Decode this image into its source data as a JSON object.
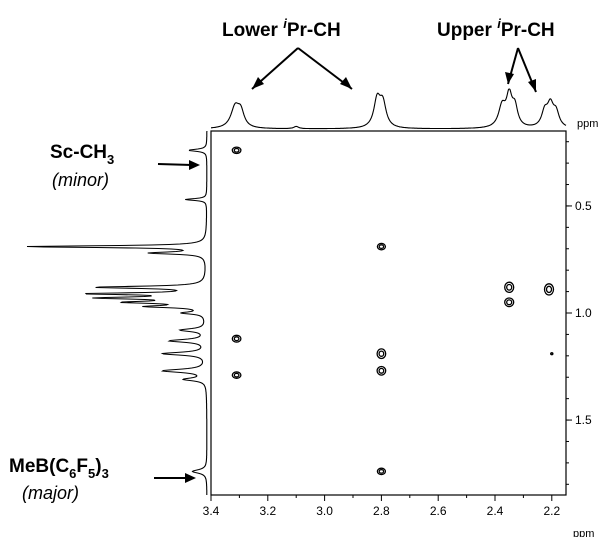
{
  "chart_data": {
    "type": "scatter",
    "subtype": "2D NMR contour spectrum (COSY)",
    "x_axis": {
      "unit": "ppm",
      "range": [
        3.4,
        2.15
      ],
      "ticks": [
        "3.4",
        "3.2",
        "3.0",
        "2.8",
        "2.6",
        "2.4",
        "2.2"
      ]
    },
    "y_axis": {
      "unit": "ppm",
      "range": [
        0.15,
        1.85
      ],
      "ticks": [
        "0.5",
        "1.0",
        "1.5"
      ]
    },
    "x_unit_label": "ppm",
    "y_unit_label": "ppm",
    "annotations": {
      "lower_ipr_ch": {
        "prefix": "Lower ",
        "sup": "i",
        "suffix": "Pr-CH"
      },
      "upper_ipr_ch": {
        "prefix": "Upper ",
        "sup": "i",
        "suffix": "Pr-CH"
      },
      "sc_ch3": {
        "main": "Sc-CH",
        "sub": "3",
        "note": "(minor)"
      },
      "meb": {
        "p1": "MeB(C",
        "s1": "6",
        "p2": "F",
        "s2": "5",
        "p3": ")",
        "s3": "3",
        "note": "(major)"
      }
    },
    "cross_peaks": [
      {
        "x": 3.31,
        "y": 0.24,
        "w": 0.03,
        "h": 0.03
      },
      {
        "x": 3.31,
        "y": 1.12,
        "w": 0.03,
        "h": 0.032
      },
      {
        "x": 3.31,
        "y": 1.29,
        "w": 0.03,
        "h": 0.03
      },
      {
        "x": 2.8,
        "y": 0.69,
        "w": 0.028,
        "h": 0.03
      },
      {
        "x": 2.8,
        "y": 1.19,
        "w": 0.03,
        "h": 0.045
      },
      {
        "x": 2.8,
        "y": 1.27,
        "w": 0.03,
        "h": 0.04
      },
      {
        "x": 2.8,
        "y": 1.74,
        "w": 0.028,
        "h": 0.03
      },
      {
        "x": 2.35,
        "y": 0.88,
        "w": 0.032,
        "h": 0.048
      },
      {
        "x": 2.35,
        "y": 0.95,
        "w": 0.032,
        "h": 0.04
      },
      {
        "x": 2.21,
        "y": 0.89,
        "w": 0.032,
        "h": 0.052
      },
      {
        "x": 2.2,
        "y": 1.19,
        "w": 0.006,
        "h": 0.008
      }
    ],
    "top_projection_peaks": [
      {
        "ppm": 3.315,
        "height": 0.55,
        "width": 0.018
      },
      {
        "ppm": 3.295,
        "height": 0.38,
        "width": 0.014
      },
      {
        "ppm": 2.815,
        "height": 0.72,
        "width": 0.014
      },
      {
        "ppm": 2.795,
        "height": 0.62,
        "width": 0.014
      },
      {
        "ppm": 3.1,
        "height": 0.06,
        "width": 0.01
      },
      {
        "ppm": 2.375,
        "height": 0.55,
        "width": 0.015
      },
      {
        "ppm": 2.35,
        "height": 0.78,
        "width": 0.012
      },
      {
        "ppm": 2.33,
        "height": 0.5,
        "width": 0.012
      },
      {
        "ppm": 2.225,
        "height": 0.4,
        "width": 0.013
      },
      {
        "ppm": 2.205,
        "height": 0.55,
        "width": 0.013
      },
      {
        "ppm": 2.185,
        "height": 0.38,
        "width": 0.013
      }
    ],
    "left_projection_peaks": [
      {
        "ppm": 0.24,
        "height": 0.1,
        "width": 0.006
      },
      {
        "ppm": 0.47,
        "height": 0.12,
        "width": 0.005
      },
      {
        "ppm": 0.69,
        "height": 1.0,
        "width": 0.005
      },
      {
        "ppm": 0.72,
        "height": 0.3,
        "width": 0.006
      },
      {
        "ppm": 0.88,
        "height": 0.6,
        "width": 0.006
      },
      {
        "ppm": 0.91,
        "height": 0.62,
        "width": 0.005
      },
      {
        "ppm": 0.93,
        "height": 0.55,
        "width": 0.006
      },
      {
        "ppm": 0.95,
        "height": 0.4,
        "width": 0.006
      },
      {
        "ppm": 0.97,
        "height": 0.3,
        "width": 0.006
      },
      {
        "ppm": 1.0,
        "height": 0.12,
        "width": 0.006
      },
      {
        "ppm": 1.08,
        "height": 0.14,
        "width": 0.008
      },
      {
        "ppm": 1.13,
        "height": 0.2,
        "width": 0.008
      },
      {
        "ppm": 1.19,
        "height": 0.24,
        "width": 0.008
      },
      {
        "ppm": 1.27,
        "height": 0.24,
        "width": 0.009
      },
      {
        "ppm": 1.31,
        "height": 0.12,
        "width": 0.008
      },
      {
        "ppm": 1.74,
        "height": 0.08,
        "width": 0.01
      }
    ]
  }
}
